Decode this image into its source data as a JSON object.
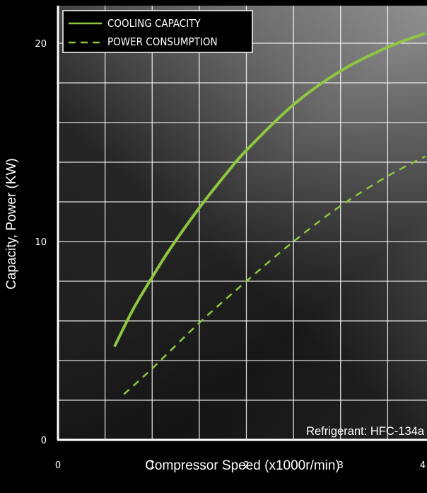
{
  "chart_data": {
    "type": "line",
    "xlabel": "Compressor Speed (x1000r/min)",
    "ylabel": "Capacity, Power (KW)",
    "xlim": [
      0,
      4
    ],
    "ylim": [
      0,
      22
    ],
    "x_ticks": [
      0,
      1,
      2,
      3,
      4
    ],
    "y_ticks": [
      0,
      10,
      20
    ],
    "grid": true,
    "legend_position": "top-left",
    "annotation": "Refrigerant: HFC-134a",
    "series": [
      {
        "name": "COOLING CAPACITY",
        "style": "solid",
        "color": "#8dc63f",
        "x": [
          0.6,
          0.8,
          1.0,
          1.2,
          1.5,
          1.8,
          2.0,
          2.5,
          3.0,
          3.5,
          3.9
        ],
        "y": [
          4.7,
          6.6,
          8.2,
          9.7,
          11.7,
          13.5,
          14.6,
          16.9,
          18.6,
          19.8,
          20.5
        ]
      },
      {
        "name": "POWER CONSUMPTION",
        "style": "dashed",
        "color": "#8dc63f",
        "x": [
          0.7,
          1.0,
          1.5,
          2.0,
          2.5,
          3.0,
          3.5,
          3.9
        ],
        "y": [
          2.3,
          3.6,
          5.9,
          8.0,
          10.0,
          11.8,
          13.3,
          14.3
        ]
      }
    ]
  }
}
